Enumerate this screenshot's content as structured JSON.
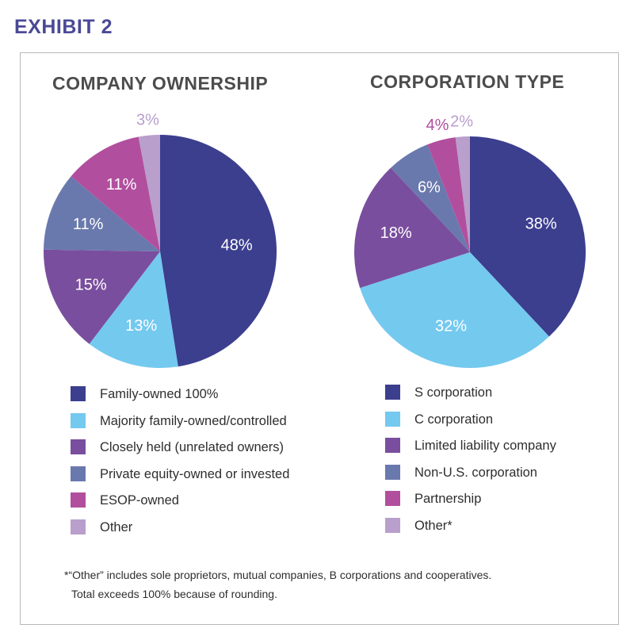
{
  "exhibit_label": "EXHIBIT 2",
  "footnote": {
    "line1": "*“Other” includes sole proprietors, mutual companies, B corporations and cooperatives.",
    "line2": "Total exceeds 100% because of rounding."
  },
  "colors": {
    "accent": "#4a4996",
    "dark_blue": "#3c3e8e",
    "light_blue": "#74c9ef",
    "purple": "#7a4e9e",
    "slate_blue": "#6a79ad",
    "magenta": "#b14f9e",
    "lavender": "#b99fcc"
  },
  "chart_data": [
    {
      "type": "pie",
      "title": "COMPANY OWNERSHIP",
      "slices": [
        {
          "label": "Family-owned 100%",
          "value": 48,
          "display": "48%",
          "color": "#3c3e8e",
          "text_color": "#ffffff"
        },
        {
          "label": "Majority family-owned/controlled",
          "value": 13,
          "display": "13%",
          "color": "#74c9ef",
          "text_color": "#ffffff"
        },
        {
          "label": "Closely held (unrelated owners)",
          "value": 15,
          "display": "15%",
          "color": "#7a4e9e",
          "text_color": "#ffffff"
        },
        {
          "label": "Private equity-owned or invested",
          "value": 11,
          "display": "11%",
          "color": "#6a79ad",
          "text_color": "#ffffff"
        },
        {
          "label": "ESOP-owned",
          "value": 11,
          "display": "11%",
          "color": "#b14f9e",
          "text_color": "#ffffff"
        },
        {
          "label": "Other",
          "value": 3,
          "display": "3%",
          "color": "#b99fcc",
          "text_color": "#b99fcc",
          "outside": true
        }
      ]
    },
    {
      "type": "pie",
      "title": "CORPORATION TYPE",
      "slices": [
        {
          "label": "S corporation",
          "value": 38,
          "display": "38%",
          "color": "#3c3e8e",
          "text_color": "#ffffff"
        },
        {
          "label": "C corporation",
          "value": 32,
          "display": "32%",
          "color": "#74c9ef",
          "text_color": "#ffffff"
        },
        {
          "label": "Limited liability company",
          "value": 18,
          "display": "18%",
          "color": "#7a4e9e",
          "text_color": "#ffffff"
        },
        {
          "label": "Non-U.S. corporation",
          "value": 6,
          "display": "6%",
          "color": "#6a79ad",
          "text_color": "#ffffff"
        },
        {
          "label": "Partnership",
          "value": 4,
          "display": "4%",
          "color": "#b14f9e",
          "text_color": "#b14f9e",
          "outside": true
        },
        {
          "label": "Other*",
          "value": 2,
          "display": "2%",
          "color": "#b99fcc",
          "text_color": "#b99fcc",
          "outside": true
        }
      ]
    }
  ]
}
